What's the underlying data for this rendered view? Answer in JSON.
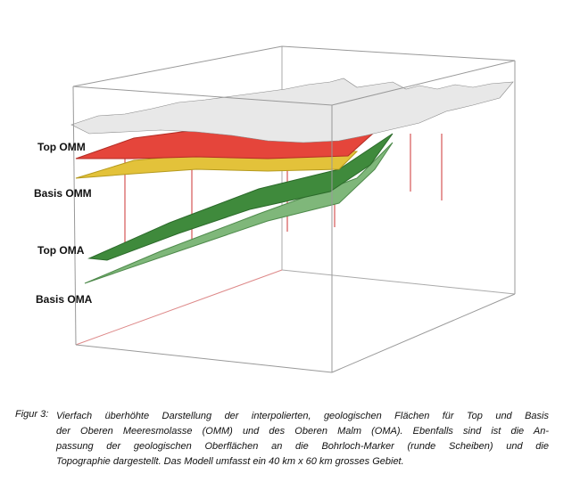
{
  "figure": {
    "labels": [
      "Top OMM",
      "Basis OMM",
      "Top OMA",
      "Basis OMA"
    ],
    "caption": {
      "label": "Figur 3:",
      "lines": [
        "Vierfach überhöhte Darstellung der interpolierten, geologischen Flächen für Top und Basis",
        "der Oberen Meeresmolasse (OMM) und des Oberen Malm (OMA). Ebenfalls sind ist die An-",
        "passung der geologischen Oberflächen an die Bohrloch-Marker (runde Scheiben) und die",
        "Topographie dargestellt. Das Modell umfasst ein 40 km x 60 km grosses Gebiet."
      ]
    }
  }
}
